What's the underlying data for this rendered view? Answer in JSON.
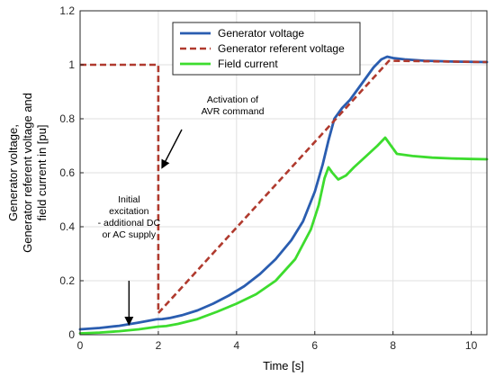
{
  "chart_data": {
    "type": "line",
    "xlabel": "Time [s]",
    "ylabel_lines": [
      "Generator voltage,",
      "Generator referent voltage and",
      "field current in [pu]"
    ],
    "xlim": [
      0,
      10.4
    ],
    "ylim": [
      0,
      1.2
    ],
    "xticks": [
      0,
      2,
      4,
      6,
      8,
      10
    ],
    "yticks": [
      0,
      0.2,
      0.4,
      0.6,
      0.8,
      1,
      1.2
    ],
    "xtick_labels": [
      "0",
      "2",
      "4",
      "6",
      "8",
      "10"
    ],
    "ytick_labels": [
      "0",
      "0.2",
      "0.4",
      "0.6",
      "0.8",
      "1",
      "1.2"
    ],
    "grid": true,
    "legend_position": "top-right",
    "series": [
      {
        "name": "Generator voltage",
        "color": "#2a5db0",
        "style": "solid",
        "x": [
          0,
          0.5,
          1.0,
          1.5,
          1.95,
          2.1,
          2.3,
          2.6,
          3.0,
          3.4,
          3.8,
          4.2,
          4.6,
          5.0,
          5.4,
          5.7,
          6.0,
          6.2,
          6.35,
          6.5,
          6.7,
          6.9,
          7.1,
          7.3,
          7.5,
          7.7,
          7.85,
          8.0,
          8.3,
          8.8,
          9.5,
          10.4
        ],
        "y": [
          0.02,
          0.025,
          0.033,
          0.045,
          0.057,
          0.058,
          0.062,
          0.072,
          0.09,
          0.115,
          0.145,
          0.18,
          0.225,
          0.28,
          0.35,
          0.42,
          0.53,
          0.63,
          0.72,
          0.8,
          0.84,
          0.87,
          0.91,
          0.95,
          0.99,
          1.02,
          1.03,
          1.025,
          1.02,
          1.015,
          1.012,
          1.01
        ]
      },
      {
        "name": "Generator referent voltage",
        "color": "#b03a2e",
        "style": "dashed",
        "x": [
          0,
          2.0,
          2.0,
          7.9,
          10.4
        ],
        "y": [
          1.0,
          1.0,
          0.08,
          1.015,
          1.01
        ]
      },
      {
        "name": "Field current",
        "color": "#3ddc2e",
        "style": "solid",
        "x": [
          0,
          0.5,
          1.0,
          1.5,
          2.0,
          2.2,
          2.5,
          3.0,
          3.5,
          4.0,
          4.5,
          5.0,
          5.5,
          5.9,
          6.1,
          6.25,
          6.35,
          6.45,
          6.6,
          6.8,
          7.0,
          7.3,
          7.6,
          7.8,
          7.95,
          8.1,
          8.5,
          9.0,
          9.5,
          10.0,
          10.4
        ],
        "y": [
          0.005,
          0.008,
          0.013,
          0.02,
          0.03,
          0.032,
          0.04,
          0.058,
          0.085,
          0.115,
          0.15,
          0.2,
          0.28,
          0.39,
          0.48,
          0.58,
          0.62,
          0.6,
          0.575,
          0.59,
          0.62,
          0.66,
          0.7,
          0.73,
          0.7,
          0.67,
          0.662,
          0.656,
          0.653,
          0.651,
          0.65
        ]
      }
    ],
    "annotations": [
      {
        "lines": [
          "Activation of",
          "AVR command"
        ],
        "x": 3.9,
        "y": 0.86,
        "arrow_tail": [
          2.6,
          0.76
        ],
        "arrow_head": [
          2.1,
          0.62
        ]
      },
      {
        "lines": [
          "Initial",
          "excitation",
          "- additional DC",
          "or AC supply"
        ],
        "x": 1.25,
        "y": 0.49,
        "arrow_tail": [
          1.25,
          0.2
        ],
        "arrow_head": [
          1.25,
          0.04
        ]
      }
    ]
  }
}
